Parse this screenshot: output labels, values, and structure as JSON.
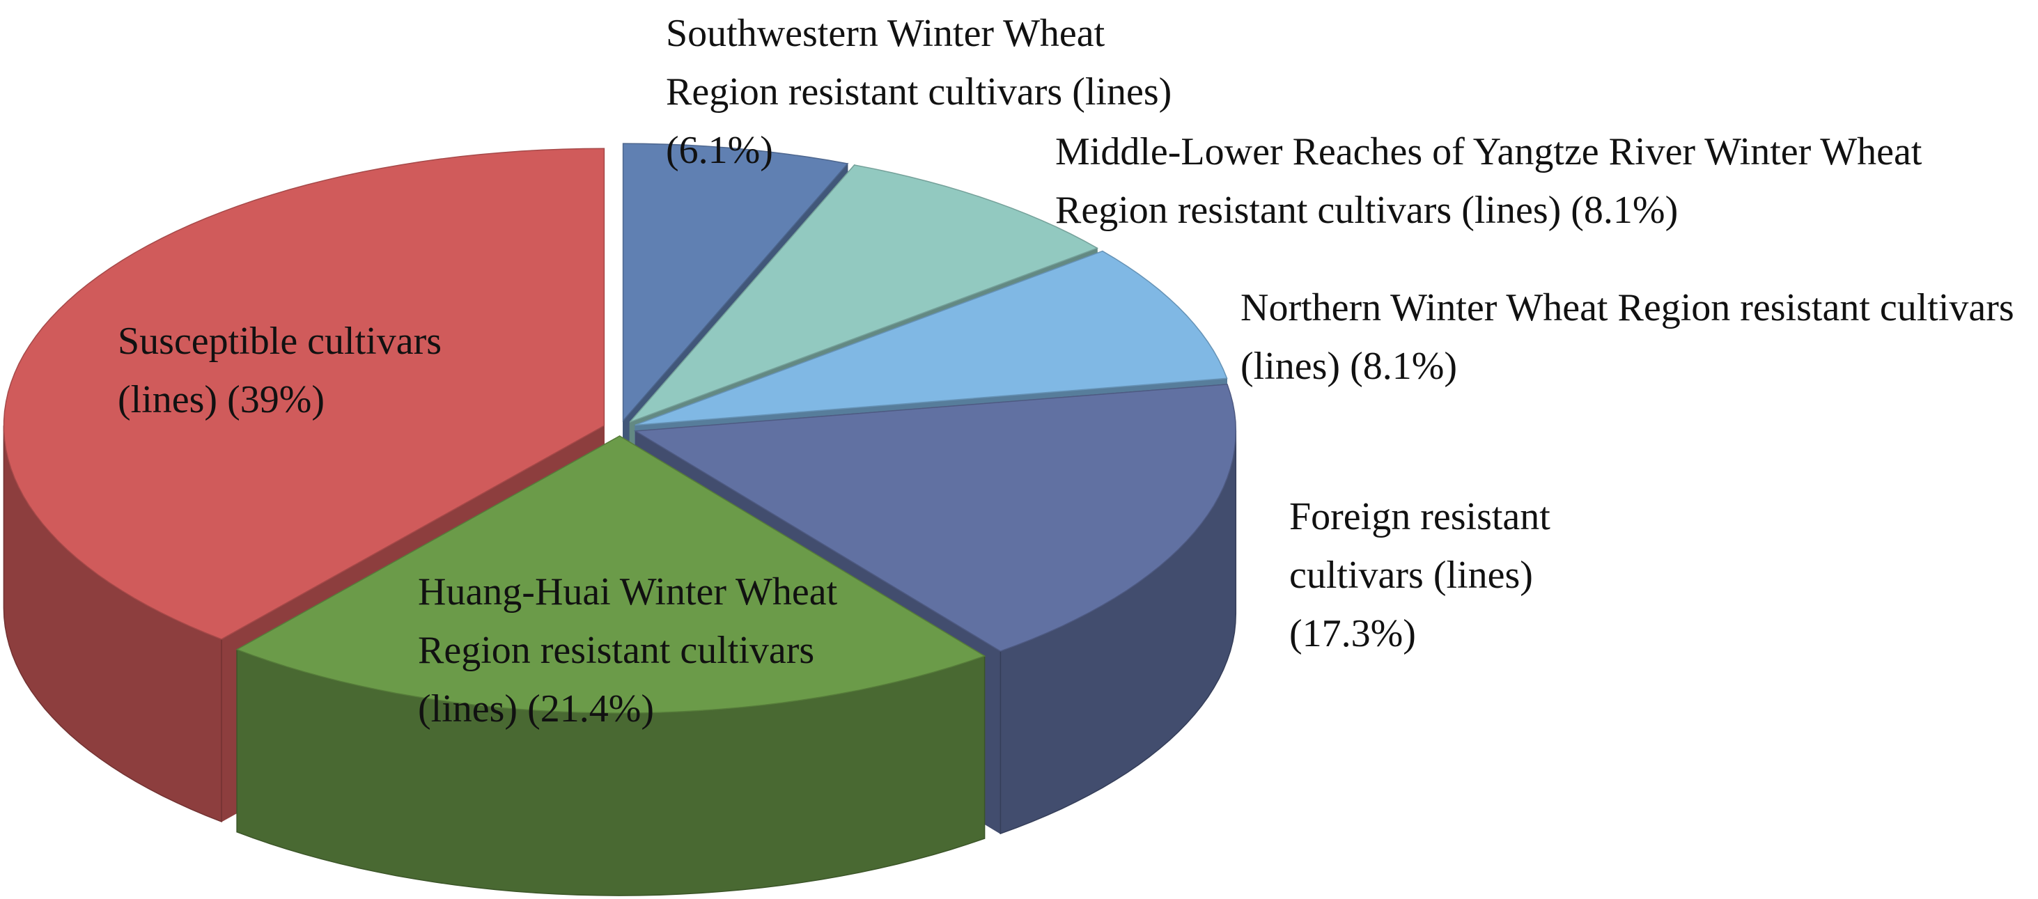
{
  "chart_data": {
    "type": "pie3d",
    "categories": [
      "Southwestern Winter Wheat Region resistant cultivars (lines)",
      "Middle-Lower Reaches of Yangtze River Winter Wheat Region  resistant cultivars (lines)",
      "Northern Winter Wheat Region resistant cultivars (lines)",
      "Foreign resistant cultivars (lines)",
      "Huang-Huai Winter Wheat Region resistant cultivars (lines)",
      "Susceptible cultivars (lines)"
    ],
    "values": [
      6.1,
      8.1,
      8.1,
      17.3,
      21.4,
      39
    ],
    "value_labels": [
      "(6.1%)",
      "(8.1%)",
      "(8.1%)",
      "(17.3%)",
      "(21.4%)",
      "(39%)"
    ],
    "colors": [
      "#6080b2",
      "#92c9c0",
      "#80b8e4",
      "#6171a2",
      "#6b9b49",
      "#d05b5b"
    ]
  }
}
